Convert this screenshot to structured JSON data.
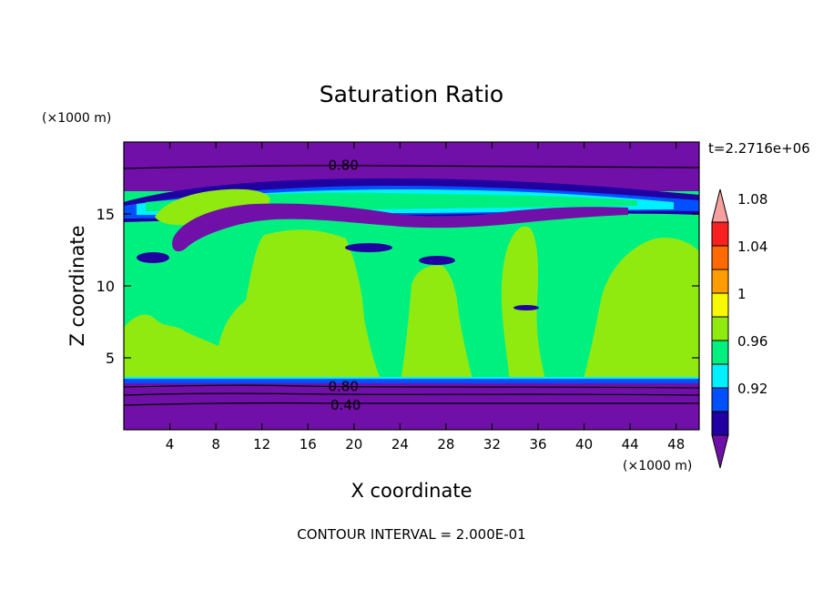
{
  "chart_data": {
    "type": "heatmap",
    "title": "Saturation Ratio",
    "xlabel": "X coordinate",
    "ylabel": "Z coordinate",
    "x_unit": "(×1000 m)",
    "y_unit": "(×1000 m)",
    "time_label": "t=2.2716e+06",
    "footer": "CONTOUR INTERVAL = 2.000E-01",
    "xlim": [
      0,
      50
    ],
    "ylim": [
      0,
      20
    ],
    "x_ticks": [
      4,
      8,
      12,
      16,
      20,
      24,
      28,
      32,
      36,
      40,
      44,
      48
    ],
    "y_ticks": [
      5,
      10,
      15
    ],
    "contour_lines": [
      {
        "label": "0.80",
        "x": 17.5,
        "y": 3.0
      },
      {
        "label": "0.40",
        "x": 17.7,
        "y": 1.7
      },
      {
        "label": "0.80",
        "x": 17.5,
        "y": 18.4
      }
    ],
    "colorbar": {
      "levels": [
        0.92,
        0.96,
        1,
        1.04,
        1.08
      ],
      "level_labels": [
        "0.92",
        "0.96",
        "1",
        "1.04",
        "1.08"
      ],
      "colors": [
        "#7010a8",
        "#2000a0",
        "#0050ff",
        "#00f0ff",
        "#00f080",
        "#90ea10",
        "#f8f800",
        "#ff9c00",
        "#ff6a00",
        "#f82020",
        "#f8a0a0"
      ]
    }
  }
}
